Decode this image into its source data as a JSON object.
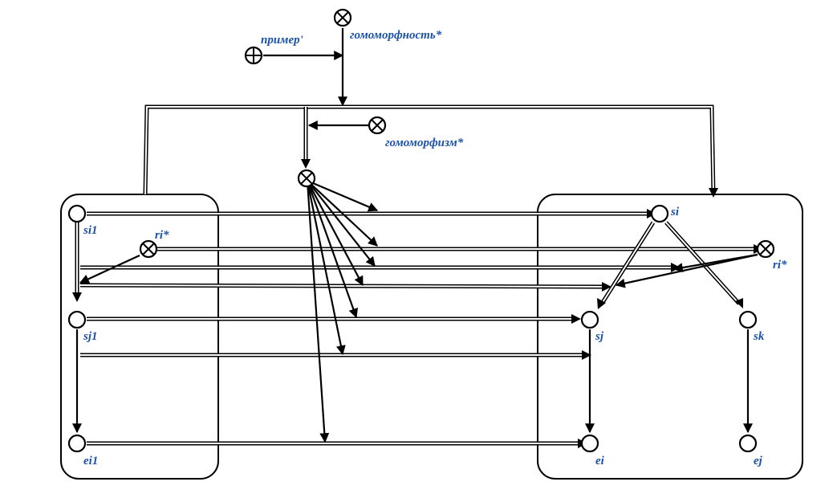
{
  "labels": {
    "primer": "пример'",
    "gomomorfnost": "гомоморфность*",
    "gomomorfizm": "гомоморфизм*",
    "ri_left": "ri*",
    "ri_right": "ri*",
    "si1": "si1",
    "sj1": "sj1",
    "ei1": "ei1",
    "si": "si",
    "sj": "sj",
    "sk": "sk",
    "ei": "ei",
    "ej": "ej"
  },
  "colors": {
    "label": "#1a52a8",
    "line": "#000000",
    "background": "#ffffff"
  },
  "node_types": {
    "class_node": "circle-times",
    "concept_node": "circle-plus",
    "element_node": "circle"
  }
}
